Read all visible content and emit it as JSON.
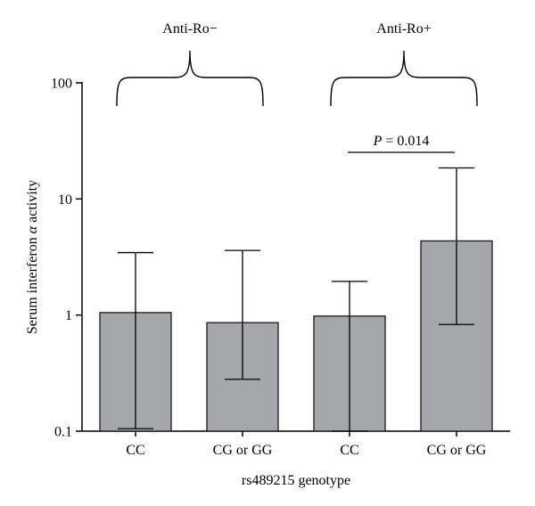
{
  "chart_data": {
    "type": "bar",
    "y_scale": "log",
    "ylim": [
      0.1,
      100
    ],
    "yticks": [
      0.1,
      1,
      10,
      100
    ],
    "ytick_labels": [
      "0.1",
      "1",
      "10",
      "100"
    ],
    "xlabel": "rs489215 genotype",
    "ylabel_prefix": "Serum interferon ",
    "ylabel_symbol": "α",
    "ylabel_suffix": " activity",
    "categories": [
      "CC",
      "CG or GG",
      "CC",
      "CG or GG"
    ],
    "values": [
      1.05,
      0.86,
      0.98,
      4.35
    ],
    "error_upper": [
      3.45,
      3.6,
      1.95,
      18.5
    ],
    "error_lower": [
      0.105,
      0.28,
      0.1,
      0.83
    ],
    "groups": [
      {
        "label": "Anti-Ro−",
        "categories": [
          0,
          1
        ]
      },
      {
        "label": "Anti-Ro+",
        "categories": [
          2,
          3
        ]
      }
    ],
    "annotation": {
      "p_symbol": "P",
      "p_text": " = 0.014",
      "between": [
        2,
        3
      ]
    },
    "grid": false,
    "legend": "none",
    "bar_color": "#a6a7ab"
  }
}
